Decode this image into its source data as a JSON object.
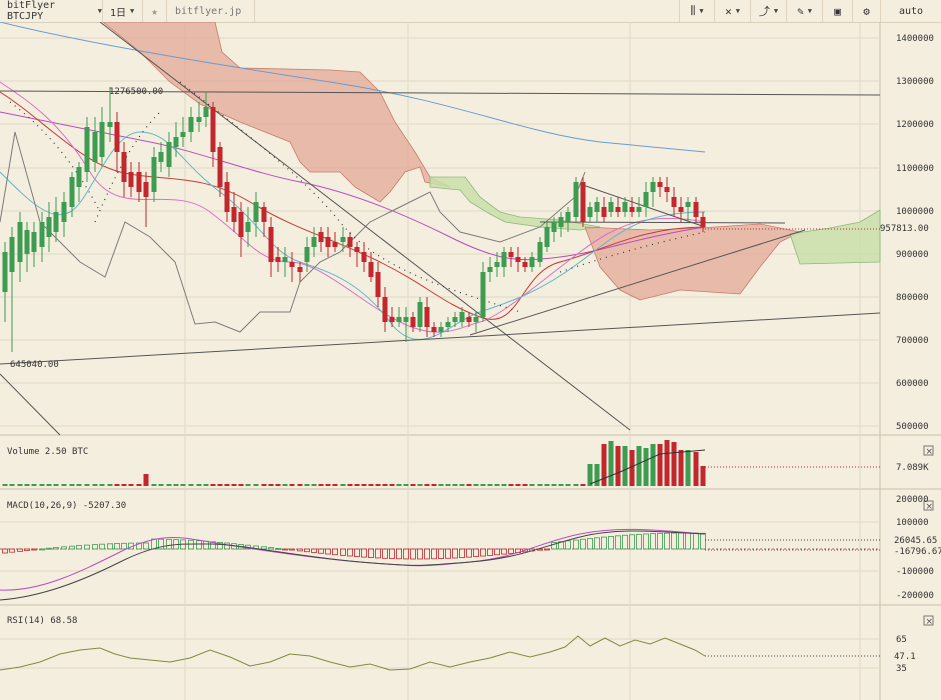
{
  "toolbar": {
    "symbol": "bitFlyer BTCJPY",
    "interval": "1日",
    "exchange": "bitflyer.jp",
    "auto_label": "auto"
  },
  "main": {
    "axis_ticks": [
      "1400000",
      "1300000",
      "1200000",
      "1100000",
      "1000000",
      "900000",
      "800000",
      "700000",
      "600000",
      "500000"
    ],
    "current_price": "957813.00",
    "high_label": "1276500.00",
    "low_label": "645040.00"
  },
  "volume": {
    "title": "Volume 2.50 BTC",
    "current": "7.089K"
  },
  "macd": {
    "title": "MACD(10,26,9) -5207.30",
    "axis_ticks": [
      "200000",
      "100000",
      "-100000",
      "-200000"
    ],
    "signal_value": "26045.65",
    "macd_value": "-16796.67"
  },
  "rsi": {
    "title": "RSI(14) 68.58",
    "axis_ticks": [
      "65",
      "35"
    ],
    "current": "47.1"
  },
  "colors": {
    "up": "#3d9b52",
    "down": "#c1272d",
    "cloud_bear": "#e3a898",
    "cloud_bull": "#c9dfa9",
    "background": "#f4eede"
  }
}
